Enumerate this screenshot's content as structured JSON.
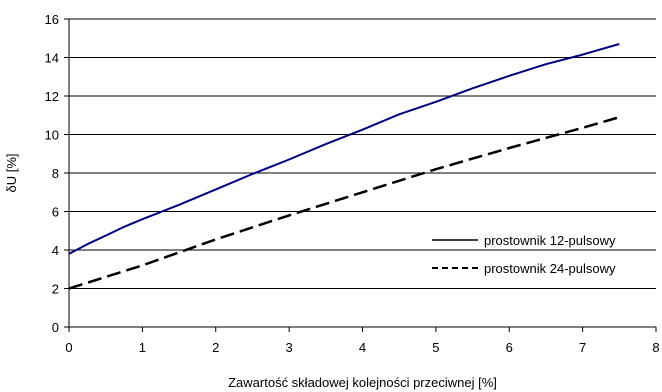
{
  "chart_data": {
    "type": "line",
    "title": "",
    "xlabel": "Zawartość składowej kolejności przeciwnej [%]",
    "ylabel": "δU [%]",
    "xlim": [
      0,
      8
    ],
    "ylim": [
      0,
      16
    ],
    "x_ticks": [
      "0",
      "1",
      "2",
      "3",
      "4",
      "5",
      "6",
      "7",
      "8"
    ],
    "y_ticks": [
      "0",
      "2",
      "4",
      "6",
      "8",
      "10",
      "12",
      "14",
      "16"
    ],
    "grid": "horizontal",
    "legend_position": "right",
    "series": [
      {
        "name": "prostownik 12-pulsowy",
        "style": "solid",
        "color": "#000080",
        "x": [
          0,
          0.25,
          0.5,
          0.75,
          1,
          1.5,
          2,
          2.5,
          3,
          3.5,
          4,
          4.5,
          5,
          5.5,
          6,
          6.5,
          7,
          7.5
        ],
        "y": [
          3.8,
          4.3,
          4.75,
          5.2,
          5.6,
          6.35,
          7.15,
          7.95,
          8.7,
          9.5,
          10.25,
          11.05,
          11.7,
          12.4,
          13.05,
          13.65,
          14.15,
          14.7
        ]
      },
      {
        "name": "prostownik 24-pulsowy",
        "style": "dashed",
        "color": "#000000",
        "x": [
          0,
          1,
          2,
          3,
          4,
          5,
          6,
          7,
          7.5
        ],
        "y": [
          2.0,
          3.2,
          4.55,
          5.8,
          7.0,
          8.2,
          9.3,
          10.35,
          10.9
        ]
      }
    ]
  }
}
